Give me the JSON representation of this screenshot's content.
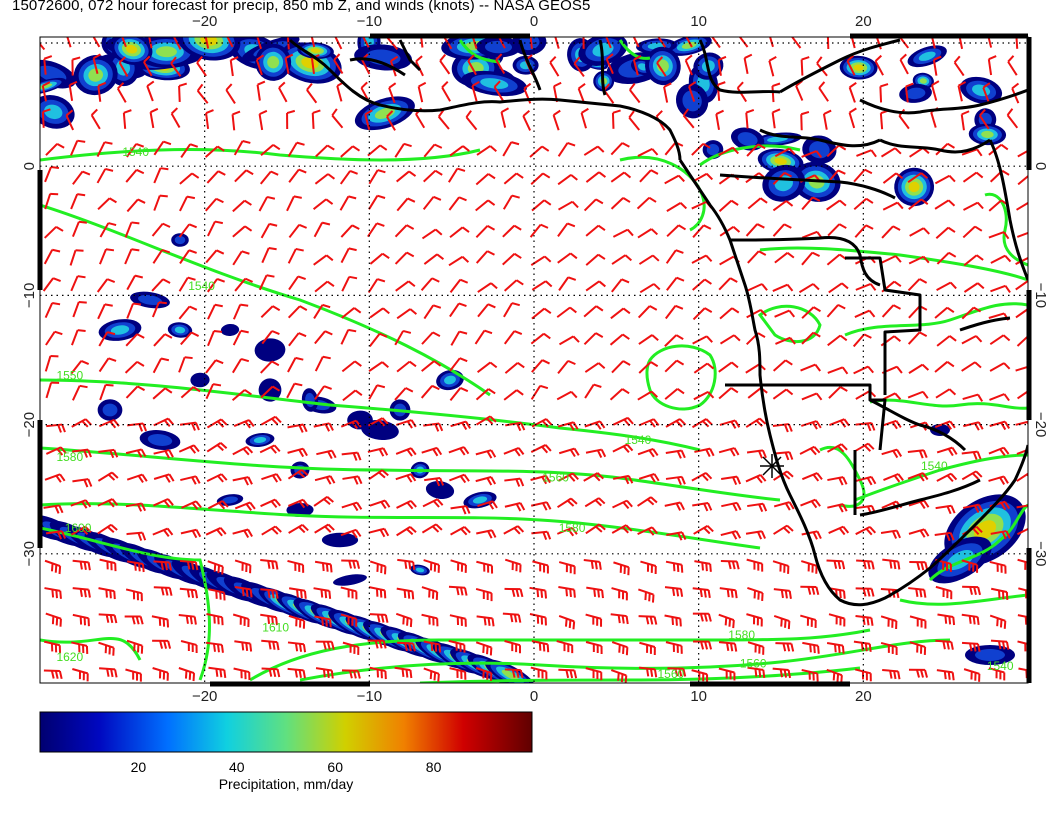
{
  "title": "15072600, 072 hour forecast for precip, 850 mb Z, and winds (knots) -- NASA GEOS5",
  "map": {
    "lon_range": [
      -30,
      30
    ],
    "lat_range": [
      -40,
      10
    ],
    "lon_ticks": [
      {
        "value": -20,
        "label": "−20"
      },
      {
        "value": -10,
        "label": "−10"
      },
      {
        "value": 0,
        "label": "0"
      },
      {
        "value": 10,
        "label": "10"
      },
      {
        "value": 20,
        "label": "20"
      }
    ],
    "lat_ticks": [
      {
        "value": 0,
        "label": "0"
      },
      {
        "value": -10,
        "label": "−10"
      },
      {
        "value": -20,
        "label": "−20"
      },
      {
        "value": -30,
        "label": "−30"
      }
    ],
    "grid_lines": "dotted",
    "contour_color": "#22ee22",
    "barb_color": "#ee1111",
    "precip_colors": [
      "#000080",
      "#1040d0",
      "#20c0e0",
      "#90e050",
      "#e0d000",
      "#e04000",
      "#800000"
    ],
    "contour_labels": [
      {
        "text": "1540",
        "lon": -25,
        "lat": 0.8
      },
      {
        "text": "1540",
        "lon": -21,
        "lat": -9.6
      },
      {
        "text": "1550",
        "lon": -29,
        "lat": -16.5
      },
      {
        "text": "1580",
        "lon": -29,
        "lat": -22.8
      },
      {
        "text": "1540",
        "lon": 5.5,
        "lat": -21.5
      },
      {
        "text": "1560",
        "lon": 0.5,
        "lat": -24.4
      },
      {
        "text": "1580",
        "lon": 1.5,
        "lat": -28.3
      },
      {
        "text": "1600",
        "lon": -28.5,
        "lat": -28.3
      },
      {
        "text": "1540",
        "lon": 23.5,
        "lat": -23.5
      },
      {
        "text": "1620",
        "lon": -29,
        "lat": -38.3
      },
      {
        "text": "1580",
        "lon": 11.8,
        "lat": -36.6
      },
      {
        "text": "1560",
        "lon": 12.5,
        "lat": -38.8
      },
      {
        "text": "1560",
        "lon": 7.5,
        "lat": -39.6
      },
      {
        "text": "1540",
        "lon": 27.5,
        "lat": -39.0
      },
      {
        "text": "1610",
        "lon": -16.5,
        "lat": -36.0
      }
    ]
  },
  "colorbar": {
    "label": "Precipitation, mm/day",
    "range": [
      0,
      100
    ],
    "ticks": [
      {
        "value": 20,
        "label": "20"
      },
      {
        "value": 40,
        "label": "40"
      },
      {
        "value": 60,
        "label": "60"
      },
      {
        "value": 80,
        "label": "80"
      }
    ]
  }
}
